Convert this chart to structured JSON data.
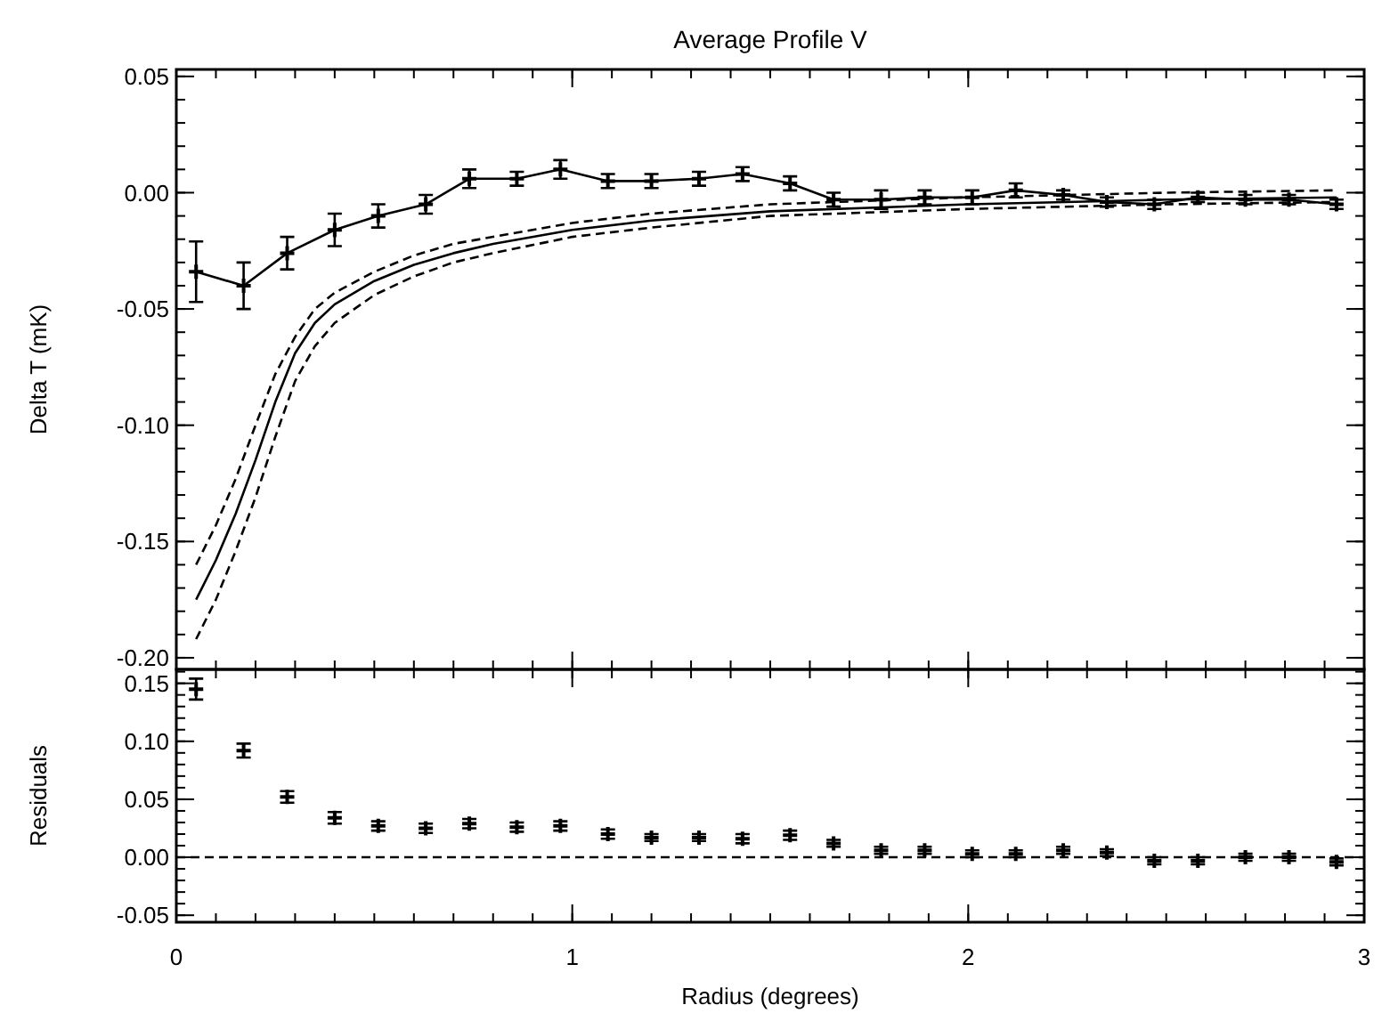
{
  "chart_data": [
    {
      "type": "line",
      "title": "Average Profile V",
      "ylabel": "Delta T (mK)",
      "xlim": [
        0,
        3
      ],
      "xticks": [
        0,
        1,
        2,
        3
      ],
      "ylim": [
        -0.205,
        0.053
      ],
      "yticks": [
        {
          "value": -0.2,
          "label": "-0.20"
        },
        {
          "value": -0.15,
          "label": "-0.15"
        },
        {
          "value": -0.1,
          "label": "-0.10"
        },
        {
          "value": -0.05,
          "label": "-0.05"
        },
        {
          "value": 0,
          "label": "0.00"
        },
        {
          "value": 0.05,
          "label": "0.05"
        }
      ],
      "tick_labels": "y",
      "series": [
        {
          "color": "#000000",
          "line_style": "solid",
          "marker": "cross",
          "x": [
            0.05,
            0.17,
            0.28,
            0.4,
            0.51,
            0.63,
            0.74,
            0.86,
            0.97,
            1.09,
            1.2,
            1.32,
            1.43,
            1.55,
            1.66,
            1.78,
            1.89,
            2.01,
            2.12,
            2.24,
            2.35,
            2.47,
            2.58,
            2.7,
            2.81,
            2.93
          ],
          "values": [
            -0.034,
            -0.04,
            -0.026,
            -0.016,
            -0.01,
            -0.005,
            0.006,
            0.006,
            0.01,
            0.005,
            0.005,
            0.006,
            0.008,
            0.004,
            -0.003,
            -0.003,
            -0.002,
            -0.002,
            0.001,
            -0.001,
            -0.004,
            -0.005,
            -0.002,
            -0.003,
            -0.003,
            -0.005
          ],
          "errors": [
            0.013,
            0.01,
            0.007,
            0.007,
            0.005,
            0.004,
            0.004,
            0.003,
            0.004,
            0.003,
            0.003,
            0.003,
            0.003,
            0.003,
            0.003,
            0.004,
            0.003,
            0.003,
            0.003,
            0.002,
            0.002,
            0.002,
            0.002,
            0.002,
            0.002,
            0.002
          ]
        },
        {
          "color": "#000000",
          "line_style": "solid",
          "x": [
            0.05,
            0.1,
            0.15,
            0.2,
            0.25,
            0.3,
            0.35,
            0.4,
            0.5,
            0.6,
            0.7,
            0.8,
            1.0,
            1.2,
            1.5,
            2.0,
            2.5,
            2.93
          ],
          "values": [
            -0.175,
            -0.158,
            -0.138,
            -0.115,
            -0.09,
            -0.069,
            -0.056,
            -0.048,
            -0.038,
            -0.031,
            -0.026,
            -0.022,
            -0.016,
            -0.012,
            -0.008,
            -0.005,
            -0.003,
            -0.002
          ]
        },
        {
          "color": "#000000",
          "line_style": "dashed",
          "x": [
            0.05,
            0.1,
            0.15,
            0.2,
            0.25,
            0.3,
            0.35,
            0.4,
            0.5,
            0.6,
            0.7,
            0.8,
            1.0,
            1.2,
            1.5,
            2.0,
            2.5,
            2.93
          ],
          "values": [
            -0.16,
            -0.143,
            -0.123,
            -0.1,
            -0.078,
            -0.062,
            -0.05,
            -0.043,
            -0.034,
            -0.027,
            -0.022,
            -0.019,
            -0.013,
            -0.009,
            -0.005,
            -0.002,
            0.0,
            0.001
          ]
        },
        {
          "color": "#000000",
          "line_style": "dashed",
          "x": [
            0.05,
            0.1,
            0.15,
            0.2,
            0.25,
            0.3,
            0.35,
            0.4,
            0.5,
            0.6,
            0.7,
            0.8,
            1.0,
            1.2,
            1.5,
            2.0,
            2.5,
            2.93
          ],
          "values": [
            -0.192,
            -0.175,
            -0.154,
            -0.131,
            -0.105,
            -0.081,
            -0.066,
            -0.056,
            -0.044,
            -0.036,
            -0.03,
            -0.026,
            -0.019,
            -0.015,
            -0.01,
            -0.007,
            -0.005,
            -0.004
          ]
        }
      ]
    },
    {
      "type": "scatter",
      "xlabel": "Radius (degrees)",
      "ylabel": "Residuals",
      "xlim": [
        0,
        3
      ],
      "xticks": [
        0,
        1,
        2,
        3
      ],
      "ylim": [
        -0.056,
        0.162
      ],
      "yticks": [
        {
          "value": -0.05,
          "label": "-0.05"
        },
        {
          "value": 0,
          "label": "0.00"
        },
        {
          "value": 0.05,
          "label": "0.05"
        },
        {
          "value": 0.1,
          "label": "0.10"
        },
        {
          "value": 0.15,
          "label": "0.15"
        }
      ],
      "ref_lines": [
        {
          "axis": "y",
          "value": 0,
          "line_style": "dashed",
          "color": "#000000"
        }
      ],
      "series": [
        {
          "color": "#000000",
          "marker": "cross",
          "x": [
            0.05,
            0.17,
            0.28,
            0.4,
            0.51,
            0.63,
            0.74,
            0.86,
            0.97,
            1.09,
            1.2,
            1.32,
            1.43,
            1.55,
            1.66,
            1.78,
            1.89,
            2.01,
            2.12,
            2.24,
            2.35,
            2.47,
            2.58,
            2.7,
            2.81,
            2.93
          ],
          "values": [
            0.145,
            0.092,
            0.052,
            0.034,
            0.027,
            0.025,
            0.029,
            0.026,
            0.027,
            0.02,
            0.017,
            0.017,
            0.016,
            0.019,
            0.012,
            0.006,
            0.006,
            0.003,
            0.003,
            0.006,
            0.004,
            -0.003,
            -0.003,
            0.0,
            0.0,
            -0.004
          ],
          "errors": [
            0.009,
            0.006,
            0.005,
            0.005,
            0.004,
            0.004,
            0.004,
            0.004,
            0.004,
            0.004,
            0.003,
            0.003,
            0.004,
            0.004,
            0.003,
            0.003,
            0.003,
            0.003,
            0.003,
            0.003,
            0.003,
            0.003,
            0.003,
            0.003,
            0.003,
            0.003
          ]
        }
      ]
    }
  ]
}
